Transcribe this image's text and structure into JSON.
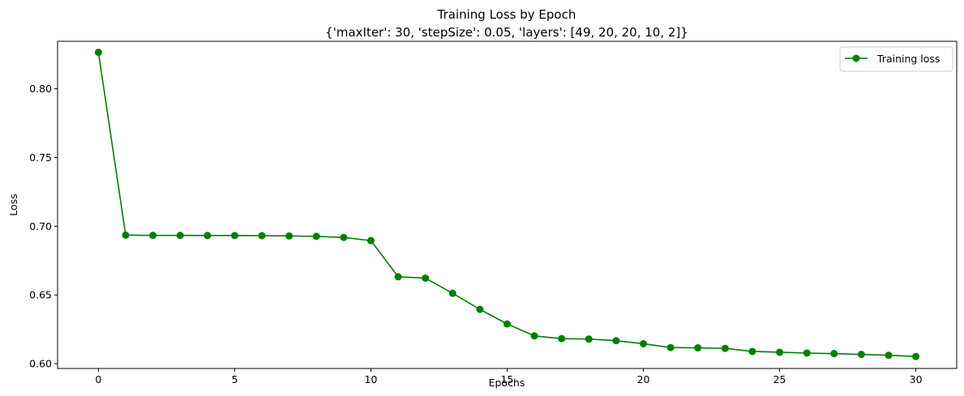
{
  "chart_data": {
    "type": "line",
    "title": "Training Loss by Epoch",
    "subtitle": "{'maxIter': 30, 'stepSize': 0.05, 'layers': [49, 20, 20, 10, 2]}",
    "xlabel": "Epochs",
    "ylabel": "Loss",
    "xlim": [
      -1.5,
      31.5
    ],
    "ylim": [
      0.5965,
      0.8345
    ],
    "xticks": [
      0,
      5,
      10,
      15,
      20,
      25,
      30
    ],
    "xtick_labels": [
      "0",
      "5",
      "10",
      "15",
      "20",
      "25",
      "30"
    ],
    "yticks": [
      0.6,
      0.65,
      0.7,
      0.75,
      0.8
    ],
    "ytick_labels": [
      "0.60",
      "0.65",
      "0.70",
      "0.75",
      "0.80"
    ],
    "grid": false,
    "legend_position": "top-right",
    "x": [
      0,
      1,
      2,
      3,
      4,
      5,
      6,
      7,
      8,
      9,
      10,
      11,
      12,
      13,
      14,
      15,
      16,
      17,
      18,
      19,
      20,
      21,
      22,
      23,
      24,
      25,
      26,
      27,
      28,
      29,
      30
    ],
    "series": [
      {
        "name": "Training loss",
        "color": "#008000",
        "marker": "circle",
        "values": [
          0.8265,
          0.6935,
          0.6933,
          0.6933,
          0.6932,
          0.6932,
          0.6931,
          0.6929,
          0.6926,
          0.6918,
          0.6895,
          0.6632,
          0.6622,
          0.6512,
          0.6395,
          0.6289,
          0.6202,
          0.6182,
          0.6179,
          0.6167,
          0.6145,
          0.6117,
          0.6115,
          0.6111,
          0.6089,
          0.6083,
          0.6077,
          0.6073,
          0.6067,
          0.6061,
          0.6052
        ]
      }
    ]
  }
}
